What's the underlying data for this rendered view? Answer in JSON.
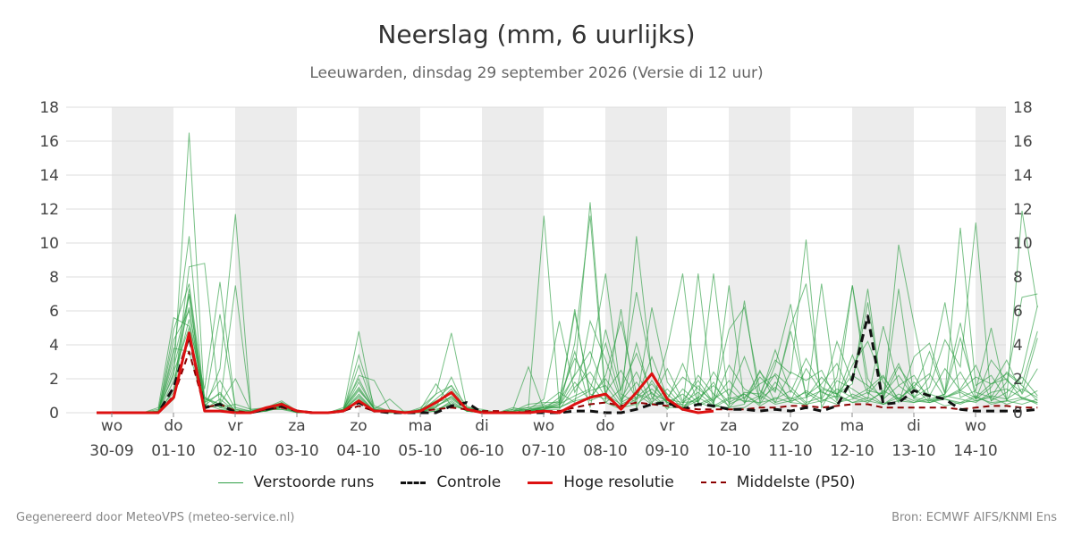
{
  "chart_data": {
    "type": "line",
    "title": "Neerslag (mm, 6 uurlijks)",
    "subtitle": "Leeuwarden, dinsdag 29 september 2026 (Versie di 12 uur)",
    "ylim": [
      0,
      18
    ],
    "yticks": [
      0,
      2,
      4,
      6,
      8,
      10,
      12,
      14,
      16,
      18
    ],
    "grid": true,
    "x_step_hours": 6,
    "x_start": "2026-09-29 18:00",
    "x_end": "2026-10-14 18:00",
    "x_ticks": [
      {
        "day": "wo",
        "date": "30-09"
      },
      {
        "day": "do",
        "date": "01-10"
      },
      {
        "day": "vr",
        "date": "02-10"
      },
      {
        "day": "za",
        "date": "03-10"
      },
      {
        "day": "zo",
        "date": "04-10"
      },
      {
        "day": "ma",
        "date": "05-10"
      },
      {
        "day": "di",
        "date": "06-10"
      },
      {
        "day": "wo",
        "date": "07-10"
      },
      {
        "day": "do",
        "date": "08-10"
      },
      {
        "day": "vr",
        "date": "09-10"
      },
      {
        "day": "za",
        "date": "10-10"
      },
      {
        "day": "zo",
        "date": "11-10"
      },
      {
        "day": "ma",
        "date": "12-10"
      },
      {
        "day": "di",
        "date": "13-10"
      },
      {
        "day": "wo",
        "date": "14-10"
      }
    ],
    "legend_position": "bottom",
    "series": [
      {
        "name": "Controle",
        "color": "#111111",
        "style": "dashed",
        "values": [
          0,
          0,
          0,
          0,
          0,
          1.5,
          4.5,
          0.3,
          0.5,
          0,
          0,
          0.2,
          0.4,
          0.1,
          0,
          0,
          0.1,
          0.6,
          0.1,
          0,
          0,
          0,
          0,
          0.4,
          0.6,
          0,
          0,
          0,
          0,
          0,
          0,
          0.1,
          0.1,
          0,
          0,
          0.2,
          0.5,
          0.6,
          0.2,
          0.5,
          0.4,
          0.2,
          0.2,
          0.1,
          0.2,
          0.1,
          0.3,
          0.1,
          0.4,
          2.0,
          5.7,
          0.5,
          0.6,
          1.3,
          1.0,
          0.8,
          0.2,
          0.1,
          0.1,
          0.1,
          0.1,
          0.2
        ]
      },
      {
        "name": "Hoge resolutie",
        "color": "#dd1111",
        "style": "solid",
        "values": [
          0,
          0,
          0,
          0,
          0,
          0.9,
          4.7,
          0.1,
          0.1,
          0,
          0,
          0.3,
          0.5,
          0.1,
          0,
          0,
          0.1,
          0.7,
          0.1,
          0.1,
          0,
          0.1,
          0.6,
          1.2,
          0.2,
          0,
          0,
          0,
          0,
          0.1,
          0,
          0.5,
          0.9,
          1.1,
          0.2,
          1.2,
          2.3,
          0.8,
          0.2,
          0,
          0.1
        ]
      },
      {
        "name": "Middelste (P50)",
        "color": "#8b0000",
        "style": "dashed",
        "values": [
          0,
          0,
          0,
          0,
          0,
          1.0,
          3.6,
          0.3,
          0.5,
          0.1,
          0,
          0.2,
          0.3,
          0.1,
          0,
          0,
          0.1,
          0.4,
          0.1,
          0.1,
          0,
          0.1,
          0.2,
          0.3,
          0.2,
          0.1,
          0.1,
          0,
          0.1,
          0.1,
          0.1,
          0.3,
          0.5,
          0.6,
          0.4,
          0.6,
          0.5,
          0.4,
          0.3,
          0.2,
          0.2,
          0.2,
          0.2,
          0.3,
          0.3,
          0.4,
          0.4,
          0.3,
          0.4,
          0.5,
          0.5,
          0.3,
          0.3,
          0.3,
          0.3,
          0.3,
          0.2,
          0.3,
          0.4,
          0.4,
          0.3,
          0.3
        ]
      }
    ],
    "ensemble": {
      "name": "Verstoorde runs",
      "color": "#2e9e44",
      "members": [
        [
          0,
          0,
          0,
          0,
          0.2,
          2.2,
          16.5,
          0.6,
          1.1,
          0.1,
          0,
          0.3,
          0.7,
          0.1,
          0,
          0,
          0.2,
          1.4,
          0.2,
          0,
          0,
          0.1,
          0.8,
          1.6,
          0.4,
          0,
          0,
          0.2,
          0.3,
          11.6,
          0.4,
          2.3,
          12.4,
          1.1,
          0.3,
          0.8,
          1.4,
          0.6,
          0.2,
          1.6,
          0.5,
          0.2,
          0.3,
          0.9,
          2.3,
          1.5,
          0.6,
          0.9,
          4.2,
          1.8,
          6.5,
          0.8,
          1.6,
          0.9,
          0.7,
          0.9,
          1.3,
          2.1,
          1.7,
          2.3,
          1.6,
          0.7
        ],
        [
          0,
          0,
          0,
          0,
          0,
          3.5,
          10.4,
          0.2,
          2.6,
          11.7,
          0.2,
          0.2,
          0.4,
          0,
          0,
          0,
          0.2,
          4.8,
          0.1,
          0,
          0,
          0.3,
          1.1,
          4.7,
          0.3,
          0.2,
          0,
          0.3,
          0.1,
          0.4,
          0.3,
          4.1,
          11.6,
          0.6,
          0.2,
          10.4,
          2.2,
          1.1,
          0.3,
          8.2,
          0.4,
          0.3,
          1.2,
          1.1,
          3.1,
          2.3,
          10.2,
          0.3,
          1.9,
          1.4,
          0.8,
          5.1,
          1.6,
          2.2,
          0.7,
          1.1,
          4.4,
          1.2,
          0.9,
          2.4,
          1.7,
          4.8
        ],
        [
          0,
          0,
          0,
          0,
          0.1,
          1.2,
          8.6,
          8.8,
          0.3,
          0.5,
          0.2,
          0.3,
          0.6,
          0.1,
          0,
          0,
          0.1,
          2.8,
          0.2,
          0.8,
          0,
          0,
          0.4,
          0.9,
          0.2,
          0,
          0,
          0.1,
          0.2,
          0.8,
          5.4,
          1.2,
          2.9,
          8.2,
          1.1,
          0.6,
          6.2,
          1.8,
          0.6,
          0.7,
          8.2,
          0.5,
          0.9,
          1.7,
          2.2,
          0.6,
          0.5,
          7.6,
          0.8,
          7.5,
          2.0,
          0.7,
          9.9,
          5.2,
          0.8,
          1.1,
          10.9,
          1.6,
          2.2,
          0.8,
          11.9,
          6.2
        ],
        [
          0,
          0,
          0,
          0,
          0,
          4.9,
          7.6,
          0.8,
          0.5,
          7.5,
          0.1,
          0.1,
          0.3,
          0.1,
          0,
          0,
          0.1,
          2.2,
          1.9,
          0.2,
          0,
          0.2,
          0.6,
          0.9,
          0.2,
          0,
          0,
          0,
          0.1,
          0.3,
          0.6,
          5.9,
          1.1,
          0.8,
          6.1,
          0.3,
          1.9,
          0.5,
          0.3,
          0.9,
          0.4,
          7.5,
          0.6,
          2.1,
          1.2,
          5.1,
          7.6,
          0.8,
          2.1,
          7.5,
          1.3,
          1.1,
          2.2,
          0.9,
          1.5,
          4.3,
          2.7,
          11.2,
          0.7,
          1.8,
          6.8,
          7.0
        ],
        [
          0,
          0,
          0,
          0,
          0.1,
          3.1,
          6.9,
          0.4,
          5.8,
          0.2,
          0.1,
          0.2,
          0.5,
          0.1,
          0,
          0,
          0.2,
          1.5,
          0.2,
          0.1,
          0,
          0.2,
          1.7,
          0.4,
          0.2,
          0.1,
          0,
          0.2,
          2.7,
          0.2,
          0.5,
          3.6,
          0.3,
          4.9,
          1.3,
          7.1,
          2.4,
          0.6,
          0.5,
          2.2,
          1.1,
          0.4,
          6.6,
          0.6,
          2.8,
          6.4,
          0.9,
          2.1,
          1.1,
          1.7,
          7.3,
          0.6,
          7.3,
          0.9,
          2.1,
          6.5,
          0.9,
          1.3,
          5.0,
          0.7,
          2.4,
          6.3
        ],
        [
          0,
          0,
          0,
          0,
          0,
          1.4,
          7.3,
          0.5,
          0.2,
          0.1,
          0,
          0.1,
          0.4,
          0,
          0,
          0,
          0.1,
          1.1,
          0.1,
          0,
          0,
          0.1,
          0.3,
          2.1,
          0.1,
          0,
          0,
          0,
          0.2,
          0.3,
          0.3,
          0.8,
          1.3,
          1.6,
          0.4,
          4.1,
          0.9,
          0.3,
          0.3,
          0.7,
          1.8,
          0.3,
          0.5,
          2.5,
          0.6,
          0.9,
          0.4,
          1.4,
          1.1,
          0.6,
          0.7,
          1.2,
          2.9,
          0.8,
          0.6,
          1.0,
          0.8,
          0.6,
          1.2,
          1.4,
          0.9,
          0.6
        ],
        [
          0,
          0,
          0,
          0,
          0.3,
          5.6,
          5.1,
          1.4,
          7.7,
          0.3,
          0.1,
          0.3,
          0.3,
          0.1,
          0,
          0,
          0.1,
          3.4,
          0.4,
          0.1,
          0.1,
          0.1,
          0.5,
          1.4,
          0.1,
          0.1,
          0,
          0.1,
          0.3,
          0.5,
          1.2,
          0.6,
          5.4,
          3.1,
          0.7,
          1.8,
          0.5,
          3.8,
          8.2,
          0.5,
          0.9,
          4.9,
          6.2,
          1.3,
          0.6,
          2.4,
          1.9,
          2.5,
          0.7,
          2.8,
          4.2,
          1.8,
          0.6,
          3.3,
          4.1,
          1.2,
          5.3,
          0.8,
          1.5,
          3.1,
          1.1,
          2.6
        ],
        [
          0,
          0,
          0,
          0,
          0,
          0.8,
          4.6,
          0.9,
          0.3,
          0.1,
          0,
          0.2,
          0.2,
          0.1,
          0,
          0,
          0.1,
          0.8,
          0.1,
          0,
          0,
          0,
          0.1,
          0.6,
          0.1,
          0,
          0,
          0,
          0.1,
          0.2,
          0.2,
          1.5,
          2.4,
          0.9,
          0.3,
          0.5,
          1.2,
          0.2,
          1.4,
          0.6,
          0.3,
          0.8,
          1.1,
          0.4,
          0.9,
          0.6,
          1.3,
          0.8,
          0.5,
          1.1,
          0.7,
          0.5,
          0.9,
          0.6,
          0.8,
          0.4,
          0.6,
          1.0,
          0.5,
          0.7,
          0.9,
          0.5
        ],
        [
          0,
          0,
          0,
          0,
          0.1,
          2.7,
          6.2,
          0.2,
          0.6,
          0.1,
          0.1,
          0.1,
          0.5,
          0.1,
          0,
          0,
          0.3,
          2.0,
          0.2,
          0.1,
          0,
          0.2,
          0.7,
          1.1,
          0.3,
          0.1,
          0,
          0.1,
          0.5,
          0.6,
          0.6,
          6.1,
          0.8,
          2.2,
          5.4,
          1.1,
          0.8,
          2.6,
          0.7,
          1.9,
          0.6,
          2.8,
          1.4,
          0.9,
          3.7,
          1.2,
          3.2,
          1.5,
          1.1,
          2.2,
          1.6,
          0.9,
          2.7,
          1.4,
          3.6,
          1.1,
          2.4,
          0.8,
          3.1,
          1.9,
          1.2,
          4.4
        ],
        [
          0,
          0,
          0,
          0,
          0,
          1.9,
          5.5,
          0.6,
          1.9,
          0.2,
          0,
          0.1,
          0.3,
          0,
          0,
          0,
          0.1,
          1.3,
          0.3,
          0.1,
          0,
          0.1,
          0.4,
          0.8,
          0.2,
          0,
          0,
          0.1,
          0.2,
          0.4,
          0.7,
          2.2,
          3.6,
          1.2,
          2.5,
          0.8,
          3.3,
          0.9,
          2.1,
          1.4,
          0.7,
          1.9,
          0.8,
          2.4,
          1.3,
          4.8,
          1.0,
          1.7,
          2.9,
          0.9,
          1.4,
          2.2,
          0.7,
          1.8,
          1.0,
          2.6,
          1.3,
          0.9,
          1.7,
          2.0,
          0.8,
          1.3
        ],
        [
          0,
          0,
          0,
          0,
          0,
          3.8,
          3.6,
          0.3,
          0.4,
          0.1,
          0,
          0.2,
          0.6,
          0,
          0,
          0,
          0.2,
          0.9,
          0.1,
          0,
          0,
          0,
          0.3,
          1.0,
          0.2,
          0,
          0,
          0,
          0.1,
          0.3,
          0.5,
          1.0,
          1.4,
          4.1,
          0.8,
          2.4,
          0.6,
          1.4,
          0.4,
          0.9,
          1.6,
          0.6,
          1.1,
          0.5,
          1.8,
          0.8,
          1.2,
          0.6,
          1.4,
          0.9,
          0.6,
          1.3,
          0.8,
          1.5,
          0.6,
          0.9,
          1.2,
          0.7,
          1.0,
          0.8,
          1.4,
          0.9
        ],
        [
          0,
          0,
          0,
          0,
          0.1,
          4.3,
          6.0,
          0.9,
          0.5,
          2.0,
          0.1,
          0.3,
          0.3,
          0.1,
          0,
          0,
          0.1,
          1.8,
          0.2,
          0.1,
          0,
          0.1,
          1.1,
          1.6,
          0.1,
          0,
          0,
          0.1,
          0.2,
          0.2,
          0.9,
          3.2,
          1.7,
          0.6,
          1.4,
          3.5,
          1.1,
          0.7,
          2.9,
          0.6,
          2.4,
          1.0,
          3.3,
          0.8,
          1.5,
          0.7,
          2.6,
          1.2,
          0.9,
          3.4,
          1.1,
          2.1,
          0.8,
          1.6,
          2.3,
          0.9,
          1.4,
          2.8,
          0.7,
          1.2,
          2.1,
          1.0
        ],
        [
          0,
          0,
          0,
          0,
          0,
          2.4,
          5.0,
          0.4,
          1.2,
          0.1,
          0,
          0.1,
          0.4,
          0.1,
          0,
          0,
          0.1,
          1.0,
          0.1,
          0,
          0,
          0.1,
          0.2,
          0.5,
          0.1,
          0,
          0,
          0,
          0.1,
          0.3,
          0.3,
          0.7,
          0.9,
          2.0,
          0.6,
          1.1,
          0.5,
          0.8,
          0.6,
          1.2,
          0.4,
          0.9,
          0.7,
          0.6,
          0.8,
          1.3,
          0.5,
          0.7,
          1.0,
          0.6,
          0.9,
          0.5,
          1.1,
          0.7,
          0.6,
          0.8,
          0.5,
          0.9,
          0.6,
          0.7,
          0.5,
          0.8
        ],
        [
          0,
          0,
          0,
          0,
          0,
          1.0,
          7.0,
          0.2,
          0.8,
          0.1,
          0,
          0.2,
          0.2,
          0,
          0,
          0,
          0.1,
          0.6,
          0.1,
          0,
          0,
          0,
          0.1,
          0.7,
          0.1,
          0,
          0,
          0,
          0.1,
          0.2,
          0.4,
          1.8,
          0.7,
          1.1,
          0.5,
          0.9,
          1.7,
          0.6,
          1.1,
          0.4,
          0.8,
          1.4,
          0.6,
          1.0,
          0.5,
          0.7,
          0.9,
          1.3,
          0.6,
          0.8,
          1.2,
          0.5,
          0.7,
          0.6,
          1.1,
          0.8,
          0.6,
          0.7,
          0.9,
          0.5,
          0.8,
          0.6
        ]
      ]
    }
  },
  "legend": {
    "perturbed": "Verstoorde runs",
    "control": "Controle",
    "hires": "Hoge resolutie",
    "median": "Middelste (P50)"
  },
  "footer": {
    "left": "Gegenereerd door MeteoVPS (meteo-service.nl)",
    "right": "Bron: ECMWF AIFS/KNMI Ens"
  },
  "colors": {
    "weekend_band": "#ececec",
    "grid": "#dddddd",
    "ensemble": "#2e9e44",
    "control": "#111111",
    "hires": "#dd1111",
    "median": "#8b0000"
  }
}
